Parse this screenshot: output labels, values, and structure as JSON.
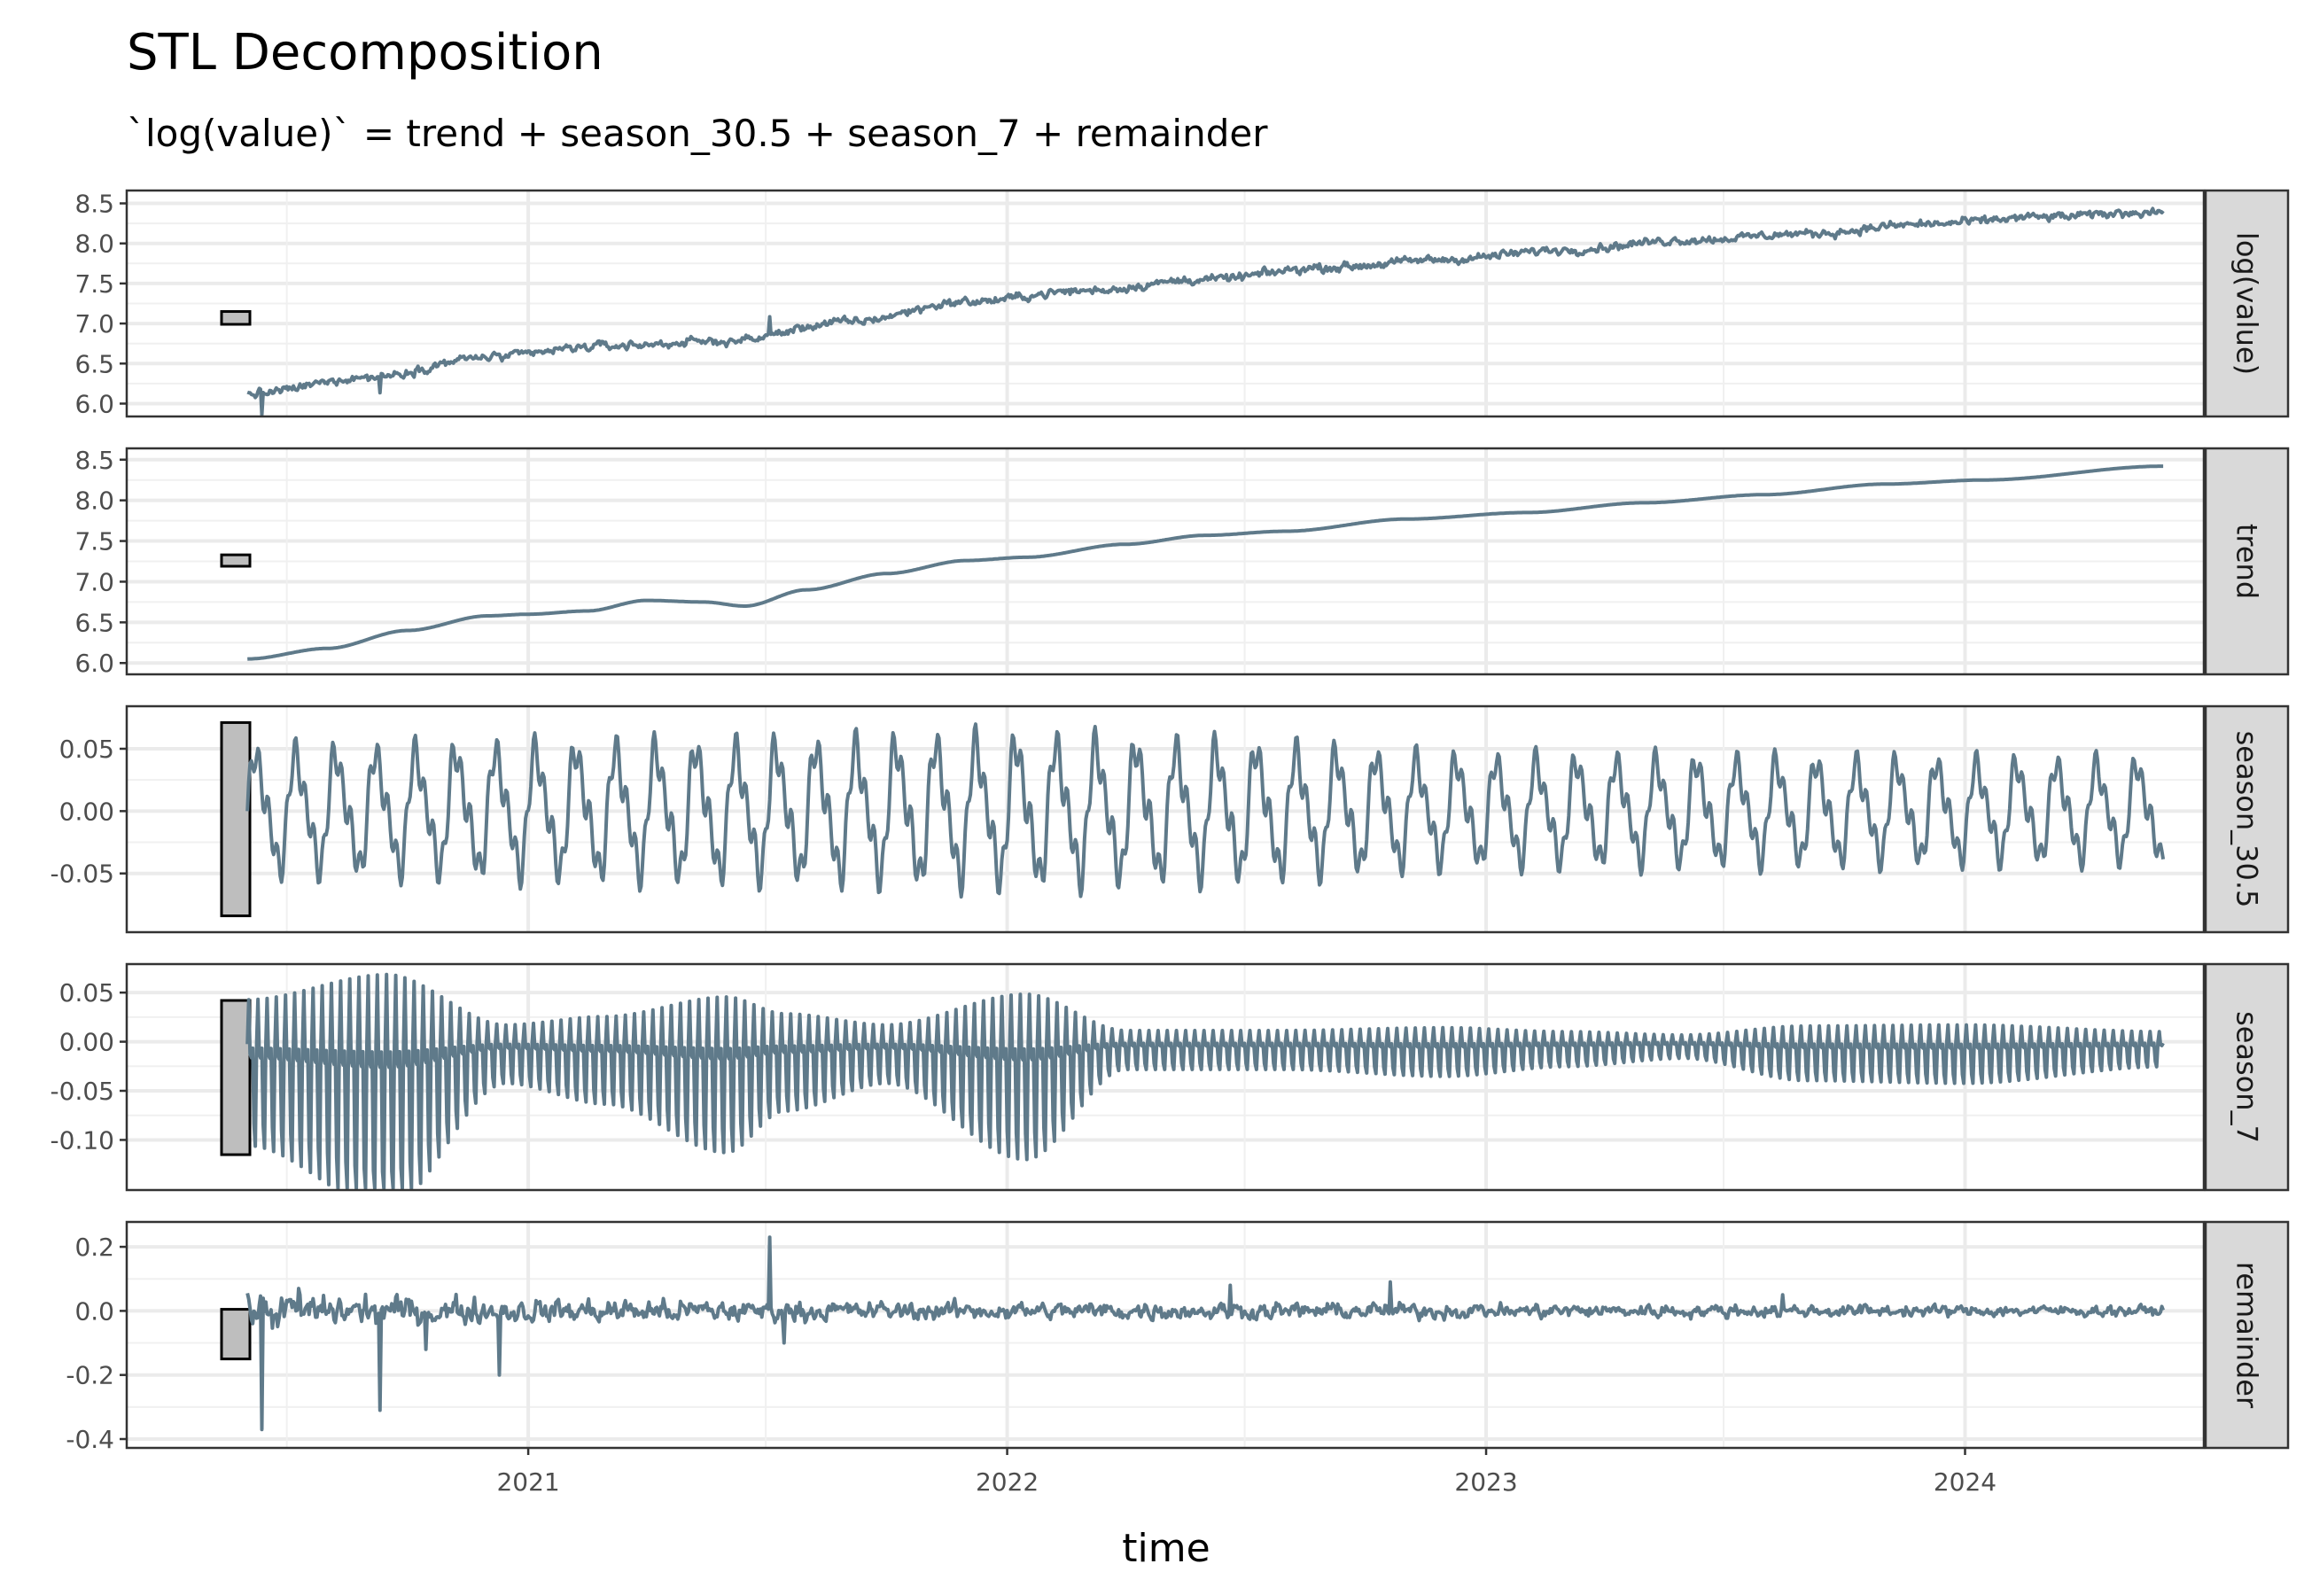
{
  "chart_data": {
    "type": "line",
    "title": "STL Decomposition",
    "subtitle": "`log(value)` = trend + season_30.5 + season_7 + remainder",
    "xlabel": "time",
    "x_ticks": [
      "2021",
      "2022",
      "2023",
      "2024"
    ],
    "x_range": [
      "2020-03-01",
      "2024-07-01"
    ],
    "series_range": [
      "2020-06-01",
      "2024-05-31"
    ],
    "line_color": "#5f7a8a",
    "grid": true,
    "panels": [
      {
        "name": "log(value)",
        "ylim": [
          5.95,
          8.55
        ],
        "y_ticks": [
          "6.0",
          "6.5",
          "7.0",
          "7.5",
          "8.0",
          "8.5"
        ],
        "scale_bar": [
          6.99,
          7.15
        ],
        "knots": [
          [
            "2020-06-01",
            6.12
          ],
          [
            "2020-09-01",
            6.33
          ],
          [
            "2020-12-01",
            6.58
          ],
          [
            "2021-03-01",
            6.72
          ],
          [
            "2021-06-01",
            6.78
          ],
          [
            "2021-09-01",
            7.02
          ],
          [
            "2021-12-01",
            7.27
          ],
          [
            "2022-03-01",
            7.41
          ],
          [
            "2022-06-01",
            7.55
          ],
          [
            "2022-09-01",
            7.7
          ],
          [
            "2022-12-01",
            7.8
          ],
          [
            "2023-03-01",
            7.92
          ],
          [
            "2023-06-01",
            8.04
          ],
          [
            "2023-09-01",
            8.12
          ],
          [
            "2023-12-01",
            8.24
          ],
          [
            "2024-03-01",
            8.33
          ],
          [
            "2024-05-31",
            8.4
          ]
        ],
        "noise": 0.05,
        "spikes": [
          [
            "2020-06-12",
            -0.3
          ],
          [
            "2020-09-10",
            -0.18
          ],
          [
            "2021-07-04",
            0.2
          ]
        ]
      },
      {
        "name": "trend",
        "ylim": [
          5.97,
          8.53
        ],
        "y_ticks": [
          "6.0",
          "6.5",
          "7.0",
          "7.5",
          "8.0",
          "8.5"
        ],
        "scale_bar": [
          7.19,
          7.33
        ],
        "knots": [
          [
            "2020-06-01",
            6.05
          ],
          [
            "2020-08-01",
            6.18
          ],
          [
            "2020-10-01",
            6.4
          ],
          [
            "2020-12-01",
            6.58
          ],
          [
            "2021-01-01",
            6.6
          ],
          [
            "2021-02-15",
            6.64
          ],
          [
            "2021-04-01",
            6.77
          ],
          [
            "2021-05-15",
            6.75
          ],
          [
            "2021-06-15",
            6.7
          ],
          [
            "2021-08-01",
            6.9
          ],
          [
            "2021-10-01",
            7.1
          ],
          [
            "2021-12-01",
            7.26
          ],
          [
            "2022-01-15",
            7.3
          ],
          [
            "2022-04-01",
            7.46
          ],
          [
            "2022-06-01",
            7.57
          ],
          [
            "2022-08-01",
            7.62
          ],
          [
            "2022-11-01",
            7.77
          ],
          [
            "2023-02-01",
            7.85
          ],
          [
            "2023-05-01",
            7.97
          ],
          [
            "2023-08-01",
            8.07
          ],
          [
            "2023-11-01",
            8.2
          ],
          [
            "2024-01-15",
            8.25
          ],
          [
            "2024-05-31",
            8.42
          ]
        ],
        "noise": 0,
        "spikes": []
      },
      {
        "name": "season_30.5",
        "ylim": [
          -0.09,
          0.077
        ],
        "y_ticks": [
          "-0.05",
          "0.00",
          "0.05"
        ],
        "scale_bar": [
          -0.084,
          0.071
        ],
        "period_days": 30.5,
        "amplitude": [
          [
            "2020-06-01",
            0.055
          ],
          [
            "2021-06-01",
            0.06
          ],
          [
            "2022-01-01",
            0.065
          ],
          [
            "2022-06-01",
            0.06
          ],
          [
            "2023-01-01",
            0.048
          ],
          [
            "2024-05-31",
            0.045
          ]
        ]
      },
      {
        "name": "season_7",
        "ylim": [
          -0.142,
          0.07
        ],
        "y_ticks": [
          "-0.10",
          "-0.05",
          "0.00",
          "0.05"
        ],
        "scale_bar": [
          -0.115,
          0.042
        ],
        "period_days": 7,
        "amplitude": [
          [
            "2020-06-01",
            0.075
          ],
          [
            "2020-09-15",
            0.12
          ],
          [
            "2020-12-15",
            0.03
          ],
          [
            "2021-03-01",
            0.045
          ],
          [
            "2021-06-01",
            0.08
          ],
          [
            "2021-07-15",
            0.05
          ],
          [
            "2021-10-01",
            0.03
          ],
          [
            "2022-01-15",
            0.085
          ],
          [
            "2022-04-01",
            0.02
          ],
          [
            "2022-08-01",
            0.02
          ],
          [
            "2022-12-01",
            0.025
          ],
          [
            "2023-03-01",
            0.018
          ],
          [
            "2023-06-01",
            0.012
          ],
          [
            "2023-09-01",
            0.028
          ],
          [
            "2024-01-01",
            0.03
          ],
          [
            "2024-05-31",
            0.018
          ]
        ]
      },
      {
        "name": "remainder",
        "ylim": [
          -0.4,
          0.25
        ],
        "y_ticks": [
          "-0.4",
          "-0.2",
          "0.0",
          "0.2"
        ],
        "scale_bar": [
          -0.15,
          0.005
        ],
        "knots": [
          [
            "2020-06-01",
            0.0
          ],
          [
            "2024-05-31",
            0.0
          ]
        ],
        "noise_profile": [
          [
            "2020-06-01",
            0.05
          ],
          [
            "2021-01-01",
            0.035
          ],
          [
            "2022-01-01",
            0.025
          ],
          [
            "2024-05-31",
            0.015
          ]
        ],
        "spikes": [
          [
            "2020-06-12",
            -0.37
          ],
          [
            "2020-07-10",
            0.07
          ],
          [
            "2020-09-10",
            -0.31
          ],
          [
            "2020-10-15",
            -0.12
          ],
          [
            "2020-12-10",
            -0.2
          ],
          [
            "2021-07-04",
            0.23
          ],
          [
            "2021-07-15",
            -0.1
          ],
          [
            "2022-06-20",
            0.08
          ],
          [
            "2022-10-20",
            0.09
          ],
          [
            "2023-08-15",
            0.05
          ]
        ]
      }
    ]
  }
}
